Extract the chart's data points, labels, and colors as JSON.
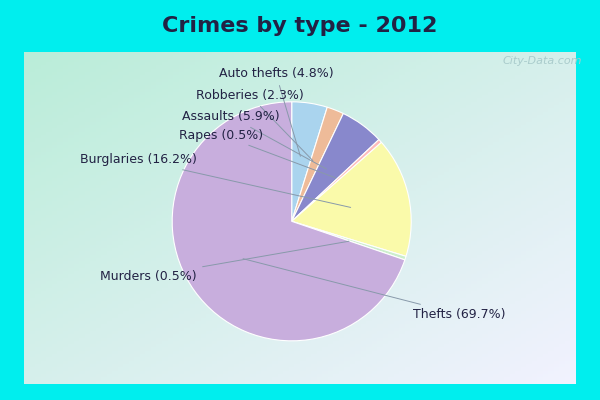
{
  "title": "Crimes by type - 2012",
  "slices": [
    {
      "label": "Thefts",
      "pct": 69.7,
      "color": "#C8AEDD"
    },
    {
      "label": "Burglaries",
      "pct": 16.2,
      "color": "#FAFAAA"
    },
    {
      "label": "Assaults",
      "pct": 5.9,
      "color": "#8888CC"
    },
    {
      "label": "Auto thefts",
      "pct": 4.8,
      "color": "#AAD4EE"
    },
    {
      "label": "Robberies",
      "pct": 2.3,
      "color": "#EEBB99"
    },
    {
      "label": "Rapes",
      "pct": 0.5,
      "color": "#FFBBBB"
    },
    {
      "label": "Murders",
      "pct": 0.5,
      "color": "#CCEECC"
    }
  ],
  "ordered_labels": [
    "Auto thefts",
    "Robberies",
    "Assaults",
    "Rapes",
    "Burglaries",
    "Murders",
    "Thefts"
  ],
  "bg_cyan": "#00EEEE",
  "bg_inner_tl": "#BBEEDD",
  "bg_inner_br": "#F0F0FF",
  "title_fontsize": 16,
  "title_color": "#222244",
  "label_fontsize": 9,
  "label_color": "#222244",
  "watermark": "City-Data.com",
  "watermark_color": "#AACCCC",
  "startangle": 90,
  "label_positions": {
    "Auto thefts": [
      0.2,
      0.87,
      "right"
    ],
    "Robberies": [
      0.02,
      0.74,
      "right"
    ],
    "Assaults": [
      -0.12,
      0.61,
      "right"
    ],
    "Rapes": [
      -0.22,
      0.5,
      "right"
    ],
    "Burglaries": [
      -0.62,
      0.35,
      "right"
    ],
    "Murders": [
      -0.62,
      -0.35,
      "right"
    ],
    "Thefts": [
      0.68,
      -0.58,
      "left"
    ]
  }
}
